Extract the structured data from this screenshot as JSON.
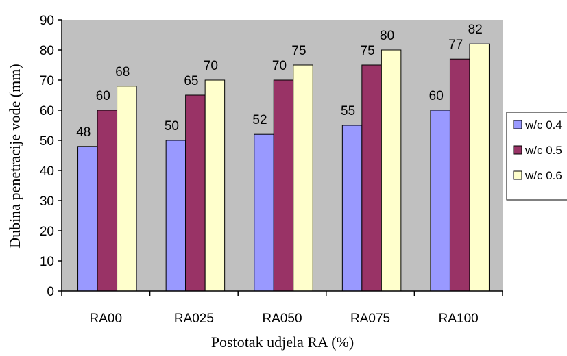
{
  "chart_data": {
    "type": "bar",
    "categories": [
      "RA00",
      "RA025",
      "RA050",
      "RA075",
      "RA100"
    ],
    "series": [
      {
        "name": "w/c 0.4",
        "values": [
          48,
          50,
          52,
          55,
          60
        ],
        "color": "#9999ff"
      },
      {
        "name": "w/c 0.5",
        "values": [
          60,
          65,
          70,
          75,
          77
        ],
        "color": "#993366"
      },
      {
        "name": "w/c 0.6",
        "values": [
          68,
          70,
          75,
          80,
          82
        ],
        "color": "#ffffcc"
      }
    ],
    "data_labels": [
      [
        "48",
        "50",
        "52",
        "55",
        "60"
      ],
      [
        "60",
        "65",
        "70",
        "75",
        "77"
      ],
      [
        "68",
        "70",
        "75",
        "80",
        "82"
      ]
    ],
    "title": "",
    "xlabel": "Postotak udjela RA (%)",
    "ylabel": "Dubina penetracije vode (mm)",
    "ylim": [
      0,
      90
    ],
    "yticks": [
      "0",
      "10",
      "20",
      "30",
      "40",
      "50",
      "60",
      "70",
      "80",
      "90"
    ],
    "grid": false,
    "legend_position": "right",
    "plot_background": "#c0c0c0"
  }
}
